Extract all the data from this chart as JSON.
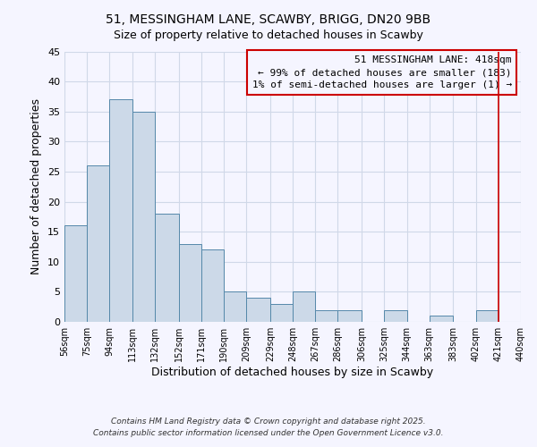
{
  "title_line1": "51, MESSINGHAM LANE, SCAWBY, BRIGG, DN20 9BB",
  "title_line2": "Size of property relative to detached houses in Scawby",
  "xlabel": "Distribution of detached houses by size in Scawby",
  "ylabel": "Number of detached properties",
  "bar_edges": [
    56,
    75,
    94,
    113,
    132,
    152,
    171,
    190,
    209,
    229,
    248,
    267,
    286,
    306,
    325,
    344,
    363,
    383,
    402,
    421,
    440
  ],
  "bar_heights": [
    16,
    26,
    37,
    35,
    18,
    13,
    12,
    5,
    4,
    3,
    5,
    2,
    2,
    0,
    2,
    0,
    1,
    0,
    2,
    0
  ],
  "bar_color": "#ccd9e8",
  "bar_edgecolor": "#5588aa",
  "ylim": [
    0,
    45
  ],
  "yticks": [
    0,
    5,
    10,
    15,
    20,
    25,
    30,
    35,
    40,
    45
  ],
  "xtick_labels": [
    "56sqm",
    "75sqm",
    "94sqm",
    "113sqm",
    "132sqm",
    "152sqm",
    "171sqm",
    "190sqm",
    "209sqm",
    "229sqm",
    "248sqm",
    "267sqm",
    "286sqm",
    "306sqm",
    "325sqm",
    "344sqm",
    "363sqm",
    "383sqm",
    "402sqm",
    "421sqm",
    "440sqm"
  ],
  "vline_x": 421,
  "vline_color": "#cc0000",
  "annotation_title": "51 MESSINGHAM LANE: 418sqm",
  "annotation_line2": "← 99% of detached houses are smaller (183)",
  "annotation_line3": "1% of semi-detached houses are larger (1) →",
  "annotation_box_color": "#cc0000",
  "footer_line1": "Contains HM Land Registry data © Crown copyright and database right 2025.",
  "footer_line2": "Contains public sector information licensed under the Open Government Licence v3.0.",
  "bg_color": "#f5f5ff",
  "grid_color": "#d0d8e8"
}
